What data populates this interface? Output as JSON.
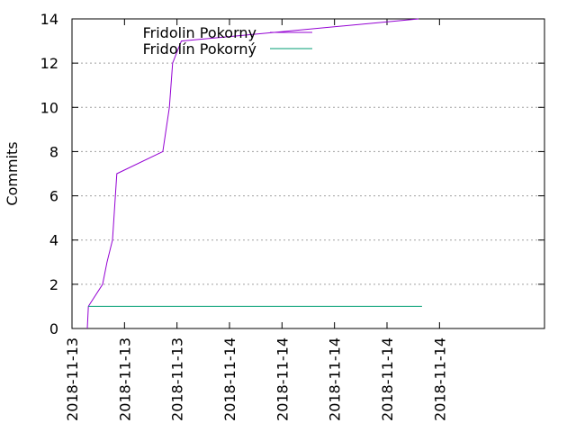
{
  "chart_data": {
    "type": "line",
    "title": "",
    "xlabel": "",
    "ylabel": "Commits",
    "ylim": [
      0,
      14
    ],
    "yticks": [
      0,
      2,
      4,
      6,
      8,
      10,
      12,
      14
    ],
    "xlim": [
      "2018-11-13T04:00",
      "2018-11-14T16:00"
    ],
    "xticks": [
      {
        "t": "2018-11-13T04:00",
        "label": "2018-11-13"
      },
      {
        "t": "2018-11-13T08:00",
        "label": "2018-11-13"
      },
      {
        "t": "2018-11-13T12:00",
        "label": "2018-11-13"
      },
      {
        "t": "2018-11-13T16:00",
        "label": "2018-11-14"
      },
      {
        "t": "2018-11-13T20:00",
        "label": "2018-11-14"
      },
      {
        "t": "2018-11-14T00:00",
        "label": "2018-11-14"
      },
      {
        "t": "2018-11-14T04:00",
        "label": "2018-11-14"
      },
      {
        "t": "2018-11-14T08:00",
        "label": "2018-11-14"
      }
    ],
    "grid": {
      "y": true,
      "x": false
    },
    "legend": "top-center",
    "series": [
      {
        "name": "Fridolin Pokorny",
        "color": "#9400d3",
        "points": [
          {
            "t": "2018-11-13T05:10",
            "y": 0
          },
          {
            "t": "2018-11-13T05:15",
            "y": 1
          },
          {
            "t": "2018-11-13T06:20",
            "y": 2
          },
          {
            "t": "2018-11-13T06:40",
            "y": 3
          },
          {
            "t": "2018-11-13T07:05",
            "y": 4
          },
          {
            "t": "2018-11-13T07:25",
            "y": 7
          },
          {
            "t": "2018-11-13T10:55",
            "y": 8
          },
          {
            "t": "2018-11-13T11:25",
            "y": 10
          },
          {
            "t": "2018-11-13T11:40",
            "y": 12
          },
          {
            "t": "2018-11-13T12:20",
            "y": 13
          },
          {
            "t": "2018-11-14T06:25",
            "y": 14
          }
        ]
      },
      {
        "name": "Fridolín Pokorný",
        "color": "#009e73",
        "points": [
          {
            "t": "2018-11-13T05:15",
            "y": 1
          },
          {
            "t": "2018-11-14T06:40",
            "y": 1
          }
        ]
      }
    ]
  }
}
